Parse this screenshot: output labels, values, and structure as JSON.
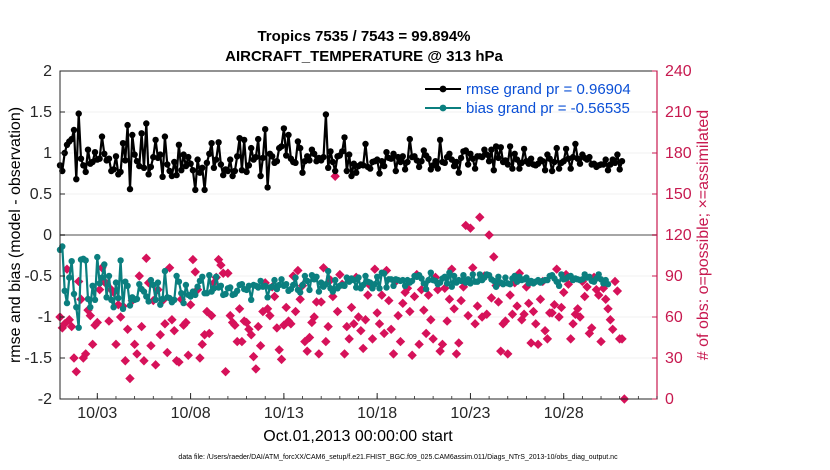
{
  "chart_data": {
    "type": "line",
    "title_line1": "Tropics 7535 / 7543 = 99.894%",
    "title_line2": "AIRCRAFT_TEMPERATURE @ 313 hPa",
    "xlabel": "Oct.01,2013 00:00:00 start",
    "ylabel_left": "rmse and bias (model - observation)",
    "ylabel_right": "# of obs: o=possible; ×=assimilated",
    "ylim_left": [
      -2,
      2
    ],
    "ylim_right": [
      0,
      240
    ],
    "xlim": [
      1,
      33
    ],
    "left_ticks": [
      "-2",
      "-1.5",
      "-1",
      "-0.5",
      "0",
      "0.5",
      "1",
      "1.5",
      "2"
    ],
    "left_tick_values": [
      -2,
      -1.5,
      -1,
      -0.5,
      0,
      0.5,
      1,
      1.5,
      2
    ],
    "right_ticks": [
      "0",
      "30",
      "60",
      "90",
      "120",
      "150",
      "180",
      "210",
      "240"
    ],
    "right_tick_values": [
      0,
      30,
      60,
      90,
      120,
      150,
      180,
      210,
      240
    ],
    "x_ticks": [
      "10/03",
      "10/08",
      "10/13",
      "10/18",
      "10/23",
      "10/28"
    ],
    "x_tick_values": [
      3,
      8,
      13,
      18,
      23,
      28
    ],
    "legend": [
      {
        "label": "rmse grand pr = 0.96904",
        "color": "#000000",
        "text_color": "#0a4fd6"
      },
      {
        "label": "bias grand pr = -0.56535",
        "color": "#0b7f7f",
        "text_color": "#0a4fd6"
      }
    ],
    "colors": {
      "rmse": "#000000",
      "bias": "#0b7f7f",
      "obs": "#d6125a",
      "zero_line": "#a6a6a6",
      "right_axis": "#c7194f"
    },
    "x_step_days": 0.125,
    "series": [
      {
        "name": "rmse",
        "values": [
          0.85,
          0.78,
          1.0,
          1.1,
          1.14,
          1.17,
          1.28,
          0.68,
          1.48,
          0.93,
          0.85,
          0.77,
          1.04,
          0.87,
          0.89,
          1.01,
          0.92,
          0.93,
          1.2,
          0.99,
          0.91,
          0.93,
          0.78,
          0.8,
          0.96,
          0.74,
          0.77,
          1.12,
          0.91,
          1.34,
          0.56,
          1.22,
          0.98,
          0.9,
          0.84,
          1.24,
          0.82,
          1.36,
          0.74,
          0.83,
          0.95,
          1.16,
          0.94,
          0.98,
          0.71,
          1.2,
          0.86,
          0.78,
          0.72,
          0.89,
          0.73,
          1.1,
          0.79,
          0.98,
          0.84,
          0.95,
          0.87,
          0.79,
          0.55,
          0.92,
          0.76,
          0.82,
          0.55,
          0.88,
          0.99,
          1.12,
          0.82,
          0.92,
          1.13,
          0.86,
          0.73,
          0.8,
          0.78,
          0.92,
          0.72,
          0.78,
          0.96,
          1.18,
          0.79,
          1.16,
          0.77,
          0.85,
          1.06,
          0.92,
          0.95,
          1.17,
          0.72,
          0.94,
          1.29,
          0.58,
          0.99,
          0.96,
          0.88,
          0.9,
          1.06,
          1.08,
          1.3,
          0.97,
          1.22,
          0.93,
          0.89,
          0.88,
          1.14,
          1.06,
          0.76,
          0.9,
          0.96,
          0.91,
          1.04,
          0.99,
          0.9,
          0.94,
          0.91,
          0.95,
          1.47,
          0.82,
          1.02,
          0.89,
          0.78,
          0.96,
          0.97,
          1.02,
          1.19,
          0.78,
          0.98,
          0.72,
          0.87,
          0.76,
          0.84,
          0.86,
          0.85,
          1.11,
          0.83,
          0.81,
          0.89,
          0.9,
          0.92,
          0.75,
          0.9,
          0.84,
          1.01,
          0.94,
          0.93,
          0.99,
          0.78,
          0.95,
          0.89,
          0.96,
          0.8,
          0.89,
          1.17,
          0.95,
          0.96,
          0.91,
          0.83,
          0.9,
          1.03,
          0.97,
          0.93,
          0.8,
          0.85,
          0.9,
          0.81,
          1.16,
          0.89,
          0.88,
          0.95,
          0.99,
          0.92,
          0.84,
          0.89,
          0.76,
          0.94,
          1.02,
          1.03,
          0.86,
          0.99,
          0.93,
          0.81,
          0.96,
          0.96,
          0.95,
          1.04,
          0.98,
          0.9,
          1.04,
          0.79,
          1.08,
          0.94,
          1.07,
          0.89,
          0.91,
          0.86,
          1.08,
          0.81,
          0.99,
          0.92,
          0.81,
          0.88,
          1.05,
          0.9,
          0.87,
          0.93,
          0.86,
          0.85,
          0.87,
          0.92,
          0.9,
          0.79,
          0.98,
          0.93,
          0.78,
          0.89,
          1.06,
          0.81,
          0.88,
          0.9,
          1.05,
          0.93,
          0.81,
          0.95,
          1.11,
          0.93,
          0.87,
          0.98,
          0.94,
          0.92,
          0.95,
          0.86,
          0.87,
          0.83,
          0.85,
          0.86,
          0.86,
          0.92,
          0.79,
          0.86,
          0.92,
          0.88,
          0.98,
          0.8,
          0.9
        ]
      },
      {
        "name": "bias",
        "values": [
          -0.18,
          -0.14,
          -0.68,
          -0.83,
          -0.52,
          -0.32,
          -0.72,
          -0.88,
          -1.13,
          -0.3,
          -0.29,
          -0.31,
          -0.78,
          -0.88,
          -0.62,
          -0.79,
          -0.27,
          -0.59,
          -0.52,
          -0.36,
          -0.76,
          -0.5,
          -0.79,
          -0.88,
          -0.58,
          -0.77,
          -0.31,
          -0.9,
          -0.57,
          -0.62,
          -0.86,
          -0.76,
          -0.79,
          -0.78,
          -0.6,
          -0.66,
          -0.69,
          -0.75,
          -0.81,
          -0.55,
          -0.61,
          -0.79,
          -0.58,
          -0.85,
          -0.78,
          -0.44,
          -0.76,
          -0.77,
          -0.82,
          -0.79,
          -0.5,
          -0.57,
          -0.71,
          -0.83,
          -0.61,
          -0.73,
          -0.75,
          -0.69,
          -0.73,
          -0.63,
          -0.56,
          -0.51,
          -0.71,
          -0.71,
          -0.49,
          -0.69,
          -0.65,
          -0.51,
          -0.64,
          -0.62,
          -0.73,
          -0.72,
          -0.65,
          -0.64,
          -0.73,
          -0.72,
          -0.68,
          -0.61,
          -0.6,
          -0.66,
          -0.67,
          -0.62,
          -0.79,
          -0.61,
          -0.62,
          -0.64,
          -0.56,
          -0.63,
          -0.62,
          -0.76,
          -0.64,
          -0.63,
          -0.55,
          -0.66,
          -0.61,
          -0.54,
          -0.62,
          -0.6,
          -0.68,
          -0.66,
          -0.61,
          -0.52,
          -0.67,
          -0.7,
          -0.61,
          -0.5,
          -0.56,
          -0.67,
          -0.49,
          -0.54,
          -0.51,
          -0.69,
          -0.58,
          -0.63,
          -0.6,
          -0.44,
          -0.65,
          -0.69,
          -0.55,
          -0.65,
          -0.62,
          -0.61,
          -0.62,
          -0.52,
          -0.57,
          -0.53,
          -0.55,
          -0.64,
          -0.52,
          -0.65,
          -0.61,
          -0.5,
          -0.57,
          -0.58,
          -0.65,
          -0.6,
          -0.51,
          -0.65,
          -0.46,
          -0.47,
          -0.64,
          -0.54,
          -0.54,
          -0.62,
          -0.54,
          -0.55,
          -0.56,
          -0.55,
          -0.62,
          -0.55,
          -0.58,
          -0.56,
          -0.5,
          -0.51,
          -0.49,
          -0.53,
          -0.59,
          -0.66,
          -0.55,
          -0.46,
          -0.55,
          -0.56,
          -0.6,
          -0.58,
          -0.53,
          -0.51,
          -0.59,
          -0.46,
          -0.63,
          -0.5,
          -0.58,
          -0.55,
          -0.56,
          -0.49,
          -0.58,
          -0.54,
          -0.59,
          -0.48,
          -0.57,
          -0.57,
          -0.48,
          -0.55,
          -0.52,
          -0.48,
          -0.49,
          -0.54,
          -0.56,
          -0.63,
          -0.51,
          -0.58,
          -0.6,
          -0.52,
          -0.59,
          -0.6,
          -0.53,
          -0.5,
          -0.57,
          -0.51,
          -0.55,
          -0.54,
          -0.52,
          -0.59,
          -0.56,
          -0.59,
          -0.57,
          -0.55,
          -0.58,
          -0.56,
          -0.55,
          -0.55,
          -0.5,
          -0.49,
          -0.53,
          -0.57,
          -0.62,
          -0.48,
          -0.54,
          -0.53,
          -0.51,
          -0.5,
          -0.55,
          -0.53,
          -0.54,
          -0.55,
          -0.54,
          -0.48,
          -0.52,
          -0.51,
          -0.56,
          -0.57,
          -0.53,
          -0.48,
          -0.54,
          -0.59,
          -0.55,
          -0.6
        ]
      },
      {
        "name": "obs_assimilated",
        "values": [
          60,
          52,
          55,
          95,
          58,
          53,
          30,
          20,
          86,
          73,
          30,
          33,
          65,
          61,
          40,
          54,
          56,
          80,
          96,
          86,
          84,
          57,
          80,
          78,
          40,
          69,
          60,
          68,
          28,
          51,
          15,
          72,
          40,
          33,
          90,
          53,
          28,
          103,
          85,
          39,
          72,
          25,
          80,
          47,
          72,
          55,
          34,
          96,
          58,
          50,
          28,
          27,
          73,
          54,
          56,
          32,
          69,
          102,
          93,
          80,
          30,
          40,
          47,
          64,
          48,
          61,
          85,
          89,
          102,
          98,
          92,
          20,
          92,
          61,
          56,
          54,
          42,
          66,
          42,
          57,
          56,
          51,
          47,
          31,
          22,
          53,
          39,
          64,
          85,
          66,
          61,
          82,
          75,
          52,
          36,
          29,
          54,
          67,
          57,
          55,
          90,
          64,
          94,
          73,
          83,
          42,
          35,
          45,
          56,
          60,
          71,
          33,
          71,
          96,
          42,
          53,
          87,
          75,
          163,
          64,
          91,
          84,
          33,
          53,
          44,
          67,
          55,
          89,
          60,
          50,
          37,
          58,
          76,
          83,
          44,
          95,
          63,
          55,
          76,
          48,
          94,
          72,
          51,
          33,
          86,
          61,
          42,
          70,
          78,
          81,
          64,
          32,
          75,
          91,
          40,
          80,
          65,
          48,
          76,
          58,
          44,
          89,
          80,
          35,
          40,
          81,
          57,
          73,
          95,
          66,
          33,
          41,
          72,
          82,
          127,
          61,
          125,
          96,
          55,
          68,
          133,
          60,
          90,
          62,
          120,
          74,
          104,
          83,
          71,
          35,
          55,
          57,
          33,
          76,
          62,
          85,
          68,
          92,
          58,
          62,
          82,
          70,
          41,
          64,
          55,
          40,
          73,
          86,
          50,
          44,
          63,
          63,
          69,
          95,
          60,
          67,
          78,
          91,
          84,
          44,
          55,
          62,
          66,
          60,
          86,
          75,
          82,
          48,
          52,
          89,
          80,
          76,
          42,
          81,
          73,
          66,
          58,
          51,
          86,
          79,
          44,
          44,
          0
        ]
      }
    ]
  },
  "footnote": "data file: /Users/raeder/DAI/ATM_forcXX/CAM6_setup/f.e21.FHIST_BGC.f09_025.CAM6assim.011/Diags_NTrS_2013-10/obs_diag_output.nc"
}
